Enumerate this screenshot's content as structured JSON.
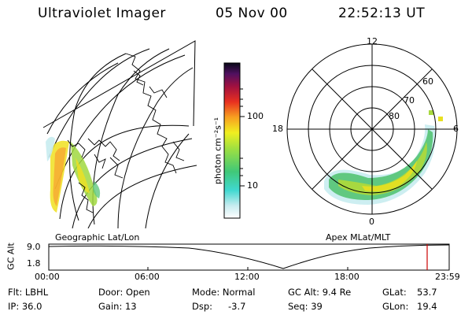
{
  "header": {
    "instrument": "Ultraviolet Imager",
    "date": "05 Nov 00",
    "time": "22:52:13 UT"
  },
  "colorbar": {
    "unit_label": "photon cm⁻²s⁻¹",
    "ticks": [
      {
        "label": "100",
        "value": 100
      },
      {
        "label": "10",
        "value": 10
      }
    ],
    "scale": "log"
  },
  "left_panel": {
    "caption": "Geographic Lat/Lon"
  },
  "right_panel": {
    "caption": "Apex MLat/MLT",
    "lat_labels": [
      "80",
      "70",
      "60"
    ],
    "mlt_labels": [
      "12",
      "18",
      "6",
      "0"
    ]
  },
  "timeline": {
    "ylabel": "GC Alt",
    "y_ticks": [
      "9.0",
      "1.8"
    ],
    "x_ticks": [
      "00:00",
      "06:00",
      "12:00",
      "18:00",
      "23:59"
    ],
    "current_time": "22:52"
  },
  "footer": {
    "filter": "Flt: LBHL",
    "door": "Door: Open",
    "mode": "Mode: Normal",
    "gc_alt": "GC Alt: 9.4 Re",
    "glat_label": "GLat:",
    "glat_value": "53.7",
    "ip": "IP: 36.0",
    "gain": "Gain: 13",
    "dsp_label": "Dsp:",
    "dsp_value": "-3.7",
    "seq": "Seq: 39",
    "glon_label": "GLon:",
    "glon_value": "19.4"
  },
  "colors": {
    "marker": "#cc0000"
  }
}
